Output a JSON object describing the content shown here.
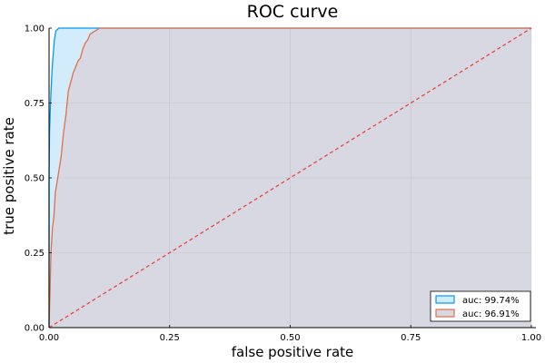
{
  "chart_data": {
    "type": "line",
    "title": "ROC curve",
    "xlabel": "false positive rate",
    "ylabel": "true positive rate",
    "xlim": [
      0,
      1
    ],
    "ylim": [
      0,
      1
    ],
    "grid": true,
    "legend_position": "bottom-right",
    "x_ticks": [
      0,
      0.25,
      0.5,
      0.75,
      1
    ],
    "x_tick_labels": [
      "0.00",
      "0.25",
      "0.50",
      "0.75",
      "1.00"
    ],
    "y_ticks": [
      0,
      0.25,
      0.5,
      0.75,
      1
    ],
    "y_tick_labels": [
      "0.00",
      "0.25",
      "0.50",
      "0.75",
      "1.00"
    ],
    "series": [
      {
        "name": "auc: 99.74%",
        "color": "#009AFA",
        "fill": "#D3ECFB",
        "x": [
          0,
          0,
          0.001,
          0.003,
          0.005,
          0.007,
          0.009,
          0.011,
          0.014,
          0.02,
          0.05,
          0.1,
          0.2,
          0.5,
          1.0
        ],
        "y": [
          0,
          0.5,
          0.65,
          0.75,
          0.82,
          0.88,
          0.92,
          0.96,
          0.99,
          1.0,
          1.0,
          1.0,
          1.0,
          1.0,
          1.0
        ]
      },
      {
        "name": "auc: 96.91%",
        "color": "#E36F47",
        "fill": "#D8D8E2",
        "x": [
          0,
          0.002,
          0.004,
          0.007,
          0.01,
          0.013,
          0.016,
          0.02,
          0.025,
          0.03,
          0.035,
          0.04,
          0.045,
          0.05,
          0.055,
          0.06,
          0.065,
          0.07,
          0.075,
          0.08,
          0.085,
          0.09,
          0.095,
          0.1,
          0.105,
          0.11,
          0.115,
          0.2,
          0.5,
          1.0
        ],
        "y": [
          0,
          0.12,
          0.25,
          0.33,
          0.37,
          0.45,
          0.48,
          0.52,
          0.57,
          0.65,
          0.71,
          0.79,
          0.82,
          0.85,
          0.87,
          0.89,
          0.9,
          0.93,
          0.95,
          0.96,
          0.98,
          0.985,
          0.99,
          0.995,
          1.0,
          1.0,
          1.0,
          1.0,
          1.0,
          1.0
        ]
      }
    ],
    "reference_line": {
      "color": "#E8473D",
      "x": [
        0,
        1
      ],
      "y": [
        0,
        1
      ]
    }
  }
}
